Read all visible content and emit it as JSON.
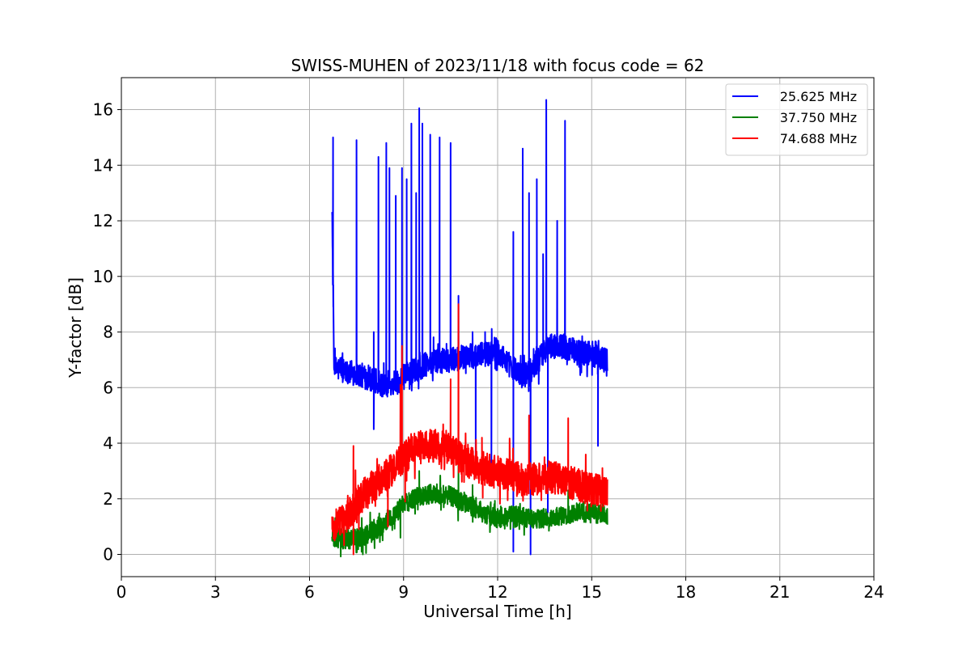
{
  "chart_data": {
    "type": "line",
    "title": "SWISS-MUHEN of 2023/11/18 with focus code = 62",
    "xlabel": "Universal Time [h]",
    "ylabel": "Y-factor [dB]",
    "xlim": [
      0,
      24
    ],
    "ylim": [
      -0.8,
      17.15
    ],
    "xticks": [
      0,
      3,
      6,
      9,
      12,
      15,
      18,
      21,
      24
    ],
    "yticks": [
      0,
      2,
      4,
      6,
      8,
      10,
      12,
      14,
      16
    ],
    "grid": true,
    "legend_position": "top-right",
    "series": [
      {
        "name": "25.625 MHz",
        "color": "#0000ff",
        "t_start": 6.72,
        "t_end": 15.5,
        "baseline": [
          [
            6.72,
            12.7
          ],
          [
            6.78,
            6.7
          ],
          [
            7.5,
            6.5
          ],
          [
            8.0,
            6.3
          ],
          [
            8.5,
            6.0
          ],
          [
            8.9,
            6.3
          ],
          [
            9.3,
            6.6
          ],
          [
            9.8,
            6.9
          ],
          [
            10.5,
            7.0
          ],
          [
            11.0,
            7.1
          ],
          [
            11.5,
            7.2
          ],
          [
            12.0,
            7.3
          ],
          [
            12.4,
            6.8
          ],
          [
            12.8,
            6.4
          ],
          [
            13.2,
            6.8
          ],
          [
            13.6,
            7.5
          ],
          [
            14.0,
            7.5
          ],
          [
            14.5,
            7.3
          ],
          [
            15.0,
            7.2
          ],
          [
            15.5,
            7.0
          ]
        ],
        "noise": 0.45,
        "spikes": [
          [
            6.75,
            15.0
          ],
          [
            7.5,
            14.9
          ],
          [
            8.05,
            8.0
          ],
          [
            8.2,
            14.3
          ],
          [
            8.45,
            14.8
          ],
          [
            8.55,
            13.9
          ],
          [
            8.75,
            12.9
          ],
          [
            8.95,
            13.9
          ],
          [
            9.1,
            13.5
          ],
          [
            9.25,
            15.5
          ],
          [
            9.4,
            13.0
          ],
          [
            9.5,
            16.05
          ],
          [
            9.6,
            15.5
          ],
          [
            9.85,
            15.1
          ],
          [
            10.15,
            15.0
          ],
          [
            10.5,
            14.8
          ],
          [
            10.75,
            9.3
          ],
          [
            11.2,
            8.0
          ],
          [
            11.6,
            8.0
          ],
          [
            11.9,
            7.8
          ],
          [
            12.5,
            11.6
          ],
          [
            12.8,
            14.6
          ],
          [
            13.0,
            13.0
          ],
          [
            13.25,
            13.5
          ],
          [
            13.45,
            10.8
          ],
          [
            13.55,
            16.35
          ],
          [
            13.9,
            12.0
          ],
          [
            14.15,
            15.6
          ]
        ],
        "dips": [
          [
            8.05,
            4.5
          ],
          [
            12.5,
            0.1
          ],
          [
            13.05,
            0.0
          ],
          [
            13.6,
            1.5
          ],
          [
            15.2,
            3.9
          ],
          [
            11.3,
            3.4
          ],
          [
            11.8,
            3.2
          ]
        ]
      },
      {
        "name": "37.750 MHz",
        "color": "#008000",
        "t_start": 6.72,
        "t_end": 15.5,
        "baseline": [
          [
            6.72,
            0.6
          ],
          [
            7.2,
            0.5
          ],
          [
            7.8,
            0.7
          ],
          [
            8.3,
            1.0
          ],
          [
            8.7,
            1.4
          ],
          [
            9.0,
            1.8
          ],
          [
            9.5,
            2.1
          ],
          [
            10.0,
            2.2
          ],
          [
            10.5,
            2.1
          ],
          [
            11.0,
            1.8
          ],
          [
            11.5,
            1.5
          ],
          [
            12.0,
            1.3
          ],
          [
            12.5,
            1.4
          ],
          [
            13.0,
            1.3
          ],
          [
            13.5,
            1.3
          ],
          [
            14.0,
            1.4
          ],
          [
            14.5,
            1.5
          ],
          [
            15.0,
            1.5
          ],
          [
            15.5,
            1.4
          ]
        ],
        "noise": 0.35,
        "spikes": [
          [
            9.5,
            3.0
          ],
          [
            10.75,
            3.3
          ],
          [
            11.2,
            2.5
          ],
          [
            14.25,
            2.3
          ]
        ],
        "dips": [
          [
            7.7,
            0.0
          ],
          [
            8.9,
            0.6
          ]
        ]
      },
      {
        "name": "74.688 MHz",
        "color": "#ff0000",
        "t_start": 6.72,
        "t_end": 15.5,
        "baseline": [
          [
            6.72,
            1.0
          ],
          [
            7.2,
            1.4
          ],
          [
            7.6,
            2.0
          ],
          [
            8.0,
            2.4
          ],
          [
            8.5,
            2.9
          ],
          [
            8.9,
            3.4
          ],
          [
            9.3,
            3.8
          ],
          [
            9.8,
            3.9
          ],
          [
            10.3,
            3.9
          ],
          [
            10.8,
            3.5
          ],
          [
            11.3,
            3.2
          ],
          [
            11.8,
            3.0
          ],
          [
            12.3,
            2.9
          ],
          [
            12.8,
            2.7
          ],
          [
            13.3,
            2.7
          ],
          [
            13.8,
            2.8
          ],
          [
            14.3,
            2.6
          ],
          [
            14.8,
            2.4
          ],
          [
            15.5,
            2.2
          ]
        ],
        "noise": 0.6,
        "spikes": [
          [
            7.4,
            3.9
          ],
          [
            8.9,
            6.1
          ],
          [
            8.95,
            7.5
          ],
          [
            10.5,
            6.3
          ],
          [
            10.75,
            9.0
          ],
          [
            11.5,
            4.2
          ],
          [
            13.0,
            5.0
          ],
          [
            14.25,
            4.9
          ]
        ],
        "dips": [
          [
            7.4,
            0.0
          ],
          [
            8.5,
            1.0
          ],
          [
            9.05,
            1.9
          ]
        ]
      }
    ]
  }
}
